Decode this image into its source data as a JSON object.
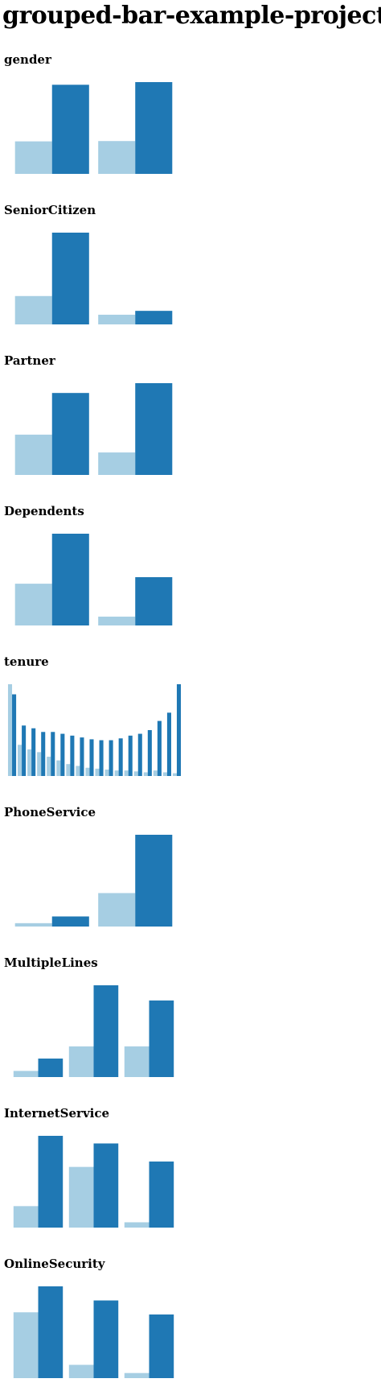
{
  "page": {
    "title": "grouped-bar-example-project"
  },
  "colors": {
    "light": "#a6cee3",
    "dark": "#1f78b4"
  },
  "chart_data": [
    {
      "type": "bar",
      "title": "gender",
      "categories": [
        "",
        ""
      ],
      "series": [
        {
          "values": [
            930,
            939
          ]
        },
        {
          "values": [
            2549,
            2625
          ]
        }
      ],
      "ylim": [
        0,
        2625
      ]
    },
    {
      "type": "bar",
      "title": "SeniorCitizen",
      "categories": [
        "",
        ""
      ],
      "series": [
        {
          "values": [
            1393,
            476
          ]
        },
        {
          "values": [
            4508,
            666
          ]
        }
      ],
      "ylim": [
        0,
        4508
      ]
    },
    {
      "type": "bar",
      "title": "Partner",
      "categories": [
        "",
        ""
      ],
      "series": [
        {
          "values": [
            1200,
            669
          ]
        },
        {
          "values": [
            2441,
            2733
          ]
        }
      ],
      "ylim": [
        0,
        2733
      ]
    },
    {
      "type": "bar",
      "title": "Dependents",
      "categories": [
        "",
        ""
      ],
      "series": [
        {
          "values": [
            1543,
            326
          ]
        },
        {
          "values": [
            3390,
            1784
          ]
        }
      ],
      "ylim": [
        0,
        3390
      ]
    },
    {
      "type": "bar",
      "title": "tenure",
      "categories": [
        "",
        "",
        "",
        "",
        "",
        "",
        "",
        "",
        "",
        "",
        "",
        "",
        "",
        "",
        "",
        "",
        "",
        ""
      ],
      "series": [
        {
          "values": [
            1000,
            340,
            290,
            260,
            210,
            170,
            130,
            110,
            90,
            80,
            70,
            60,
            60,
            50,
            40,
            60,
            40,
            30
          ]
        },
        {
          "values": [
            890,
            550,
            520,
            480,
            480,
            460,
            440,
            420,
            400,
            390,
            390,
            410,
            440,
            460,
            500,
            600,
            690,
            1000
          ]
        }
      ],
      "ylim": [
        0,
        1000
      ]
    },
    {
      "type": "bar",
      "title": "PhoneService",
      "categories": [
        "",
        ""
      ],
      "series": [
        {
          "values": [
            170,
            1699
          ]
        },
        {
          "values": [
            512,
            4662
          ]
        }
      ],
      "ylim": [
        0,
        4662
      ]
    },
    {
      "type": "bar",
      "title": "MultipleLines",
      "categories": [
        "",
        "",
        ""
      ],
      "series": [
        {
          "values": [
            170,
            849,
            850
          ]
        },
        {
          "values": [
            512,
            2541,
            2121
          ]
        }
      ],
      "ylim": [
        0,
        2541
      ]
    },
    {
      "type": "bar",
      "title": "InternetService",
      "categories": [
        "",
        "",
        ""
      ],
      "series": [
        {
          "values": [
            459,
            1297,
            113
          ]
        },
        {
          "values": [
            1962,
            1799,
            1413
          ]
        }
      ],
      "ylim": [
        0,
        1962
      ]
    },
    {
      "type": "bar",
      "title": "OnlineSecurity",
      "categories": [
        "",
        "",
        ""
      ],
      "series": [
        {
          "values": [
            1461,
            295,
            113
          ]
        },
        {
          "values": [
            2037,
            1724,
            1413
          ]
        }
      ],
      "ylim": [
        0,
        2037
      ]
    }
  ]
}
